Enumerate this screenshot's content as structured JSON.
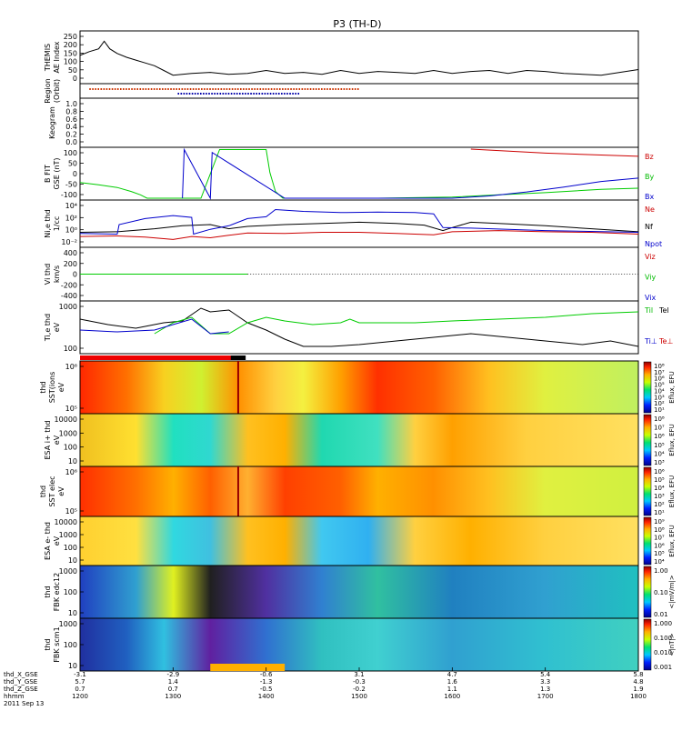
{
  "title": "P3 (TH-D)",
  "date": "2011 Sep 13",
  "chart_data": [
    {
      "type": "line",
      "ylabel": [
        "THEMIS",
        "AE Index"
      ],
      "yticks": [
        "250",
        "200",
        "150",
        "100",
        "50",
        "0"
      ],
      "ylim": [
        0,
        260
      ],
      "series": [
        {
          "color": "#000000",
          "x": [
            1200,
            1210,
            1220,
            1226,
            1232,
            1240,
            1250,
            1260,
            1270,
            1280,
            1290,
            1300,
            1320,
            1340,
            1360,
            1380,
            1400,
            1420,
            1440,
            1460,
            1480,
            1500,
            1520,
            1540,
            1560,
            1580,
            1600,
            1620,
            1640,
            1660,
            1680,
            1700,
            1720,
            1740,
            1760,
            1780,
            1800
          ],
          "y": [
            140,
            160,
            175,
            215,
            175,
            150,
            130,
            115,
            100,
            85,
            60,
            35,
            45,
            50,
            40,
            45,
            60,
            45,
            50,
            40,
            60,
            45,
            55,
            50,
            45,
            60,
            45,
            55,
            60,
            45,
            60,
            55,
            45,
            40,
            35,
            50,
            65
          ]
        }
      ]
    },
    {
      "type": "bar",
      "ylabel": [
        "Region",
        "(Orbit)"
      ],
      "series": [
        {
          "name": "orbit-red",
          "color": "#cc3300",
          "x": [
            1210,
            1500
          ]
        },
        {
          "name": "orbit-blue",
          "color": "#0000aa",
          "x": [
            1305,
            1435
          ]
        }
      ]
    },
    {
      "type": "line",
      "ylabel": [
        "Keogram"
      ],
      "yticks": [
        "1.0",
        "0.8",
        "0.6",
        "0.4",
        "0.2",
        "0.0"
      ],
      "ylim": [
        0,
        1
      ]
    },
    {
      "type": "line",
      "ylabel": [
        "B FIT",
        "GSE (nT)"
      ],
      "yticks": [
        "100",
        "50",
        "0",
        "-50",
        "-100"
      ],
      "ylim": [
        -110,
        110
      ],
      "legend": [
        {
          "label": "Bz",
          "color": "#cc0000"
        },
        {
          "label": "By",
          "color": "#00bb00"
        },
        {
          "label": "Bx",
          "color": "#0000cc"
        }
      ],
      "series": [
        {
          "name": "Bz",
          "color": "#cc0000",
          "x": [
            1620,
            1700,
            1800
          ],
          "y": [
            110,
            92,
            78
          ]
        },
        {
          "name": "By",
          "color": "#00cc00",
          "x": [
            1200,
            1220,
            1240,
            1255,
            1265,
            1272,
            1330,
            1350,
            1400,
            1404,
            1410,
            1418,
            1520,
            1600,
            1650,
            1700,
            1760,
            1800
          ],
          "y": [
            -40,
            -50,
            -62,
            -80,
            -95,
            -110,
            -110,
            108,
            108,
            5,
            -80,
            -110,
            -110,
            -105,
            -95,
            -85,
            -70,
            -65
          ]
        },
        {
          "name": "Bx",
          "color": "#0000cc",
          "x": [
            1310,
            1312,
            1340,
            1342,
            1420,
            1600,
            1640,
            1680,
            1720,
            1760,
            1800
          ],
          "y": [
            -110,
            108,
            -110,
            95,
            -110,
            -110,
            -100,
            -82,
            -60,
            -35,
            -20
          ]
        }
      ]
    },
    {
      "type": "line",
      "ylabel": [
        "Ni,e thd",
        "1/cc"
      ],
      "yticks": [
        "10^4",
        "10^2",
        "10^0",
        "10^-2"
      ],
      "legend": [
        {
          "label": "Ne",
          "color": "#cc0000"
        },
        {
          "label": "Nf",
          "color": "#000000"
        },
        {
          "label": "Npot",
          "color": "#0000cc"
        }
      ],
      "series": [
        {
          "name": "Ne",
          "color": "#cc0000",
          "x": [
            1200,
            1240,
            1270,
            1300,
            1320,
            1340,
            1360,
            1380,
            1420,
            1460,
            1500,
            1540,
            1580,
            1600,
            1650,
            1700,
            1750,
            1800
          ],
          "y": [
            -1.0,
            -0.9,
            -1.1,
            -1.5,
            -1.0,
            -1.2,
            -0.8,
            -0.4,
            -0.5,
            -0.3,
            -0.3,
            -0.5,
            -0.7,
            -0.2,
            0.0,
            -0.2,
            -0.3,
            -0.6
          ]
        },
        {
          "name": "Nf",
          "color": "#000000",
          "x": [
            1200,
            1240,
            1280,
            1310,
            1340,
            1360,
            1380,
            1420,
            1460,
            1500,
            1540,
            1570,
            1590,
            1600,
            1620,
            1660,
            1700,
            1750,
            1800
          ],
          "y": [
            -0.3,
            -0.2,
            0.3,
            0.8,
            1.0,
            0.3,
            0.7,
            1.0,
            1.2,
            1.4,
            1.2,
            0.9,
            0.0,
            0.5,
            1.4,
            1.1,
            0.8,
            0.3,
            -0.2
          ]
        },
        {
          "name": "Npot",
          "color": "#0000cc",
          "x": [
            1200,
            1240,
            1242,
            1270,
            1300,
            1320,
            1322,
            1340,
            1360,
            1380,
            1400,
            1410,
            1440,
            1480,
            1520,
            1560,
            1580,
            1590,
            1620,
            1700,
            1800
          ],
          "y": [
            -0.5,
            -0.6,
            1.0,
            2.0,
            2.5,
            2.2,
            -0.6,
            0.2,
            0.8,
            2.0,
            2.3,
            3.5,
            3.2,
            3.0,
            3.1,
            3.0,
            2.8,
            0.5,
            0.4,
            0.0,
            -0.3
          ]
        }
      ]
    },
    {
      "type": "line",
      "ylabel": [
        "Vi thd",
        "km/s"
      ],
      "yticks": [
        "400",
        "200",
        "0",
        "-200",
        "-400"
      ],
      "ylim": [
        -500,
        500
      ],
      "legend": [
        {
          "label": "Viz",
          "color": "#cc0000"
        },
        {
          "label": "Viy",
          "color": "#00bb00"
        },
        {
          "label": "Vix",
          "color": "#0000cc"
        }
      ],
      "series": [
        {
          "name": "Viz",
          "color": "#cc0000",
          "x": [
            1200,
            1380
          ],
          "y": [
            0,
            0
          ]
        },
        {
          "name": "Viy",
          "color": "#00cc00",
          "x": [
            1200,
            1380
          ],
          "y": [
            0,
            0
          ]
        }
      ]
    },
    {
      "type": "line",
      "ylabel": [
        "Ti,e thd",
        "eV"
      ],
      "yticks": [
        "1000",
        "100"
      ],
      "legend": [
        {
          "label": "Til",
          "color": "#00bb00"
        },
        {
          "label": "Tel",
          "color": "#000000"
        },
        {
          "label": "Ti⊥",
          "color": "#0000cc"
        },
        {
          "label": "Te⊥",
          "color": "#cc0000"
        }
      ],
      "series": [
        {
          "name": "Te",
          "color": "#000000",
          "x": [
            1200,
            1230,
            1260,
            1290,
            1310,
            1330,
            1340,
            1360,
            1380,
            1400,
            1420,
            1440,
            1470,
            1500,
            1540,
            1580,
            1620,
            1660,
            1700,
            1740,
            1770,
            1800
          ],
          "y": [
            2.7,
            2.55,
            2.45,
            2.6,
            2.65,
            3.0,
            2.9,
            2.95,
            2.6,
            2.4,
            2.15,
            1.95,
            1.95,
            2.0,
            2.1,
            2.2,
            2.3,
            2.2,
            2.1,
            2.0,
            2.1,
            1.95
          ]
        },
        {
          "name": "Ti",
          "color": "#00cc00",
          "x": [
            1280,
            1300,
            1320,
            1340,
            1360,
            1380,
            1400,
            1420,
            1450,
            1480,
            1490,
            1500,
            1520,
            1560,
            1600,
            1650,
            1700,
            1750,
            1800
          ],
          "y": [
            2.3,
            2.6,
            2.75,
            2.3,
            2.3,
            2.6,
            2.75,
            2.65,
            2.55,
            2.6,
            2.7,
            2.6,
            2.6,
            2.6,
            2.65,
            2.7,
            2.75,
            2.85,
            2.9
          ]
        },
        {
          "name": "Ti⊥",
          "color": "#0000cc",
          "x": [
            1200,
            1240,
            1280,
            1300,
            1320,
            1340,
            1360
          ],
          "y": [
            2.4,
            2.35,
            2.4,
            2.55,
            2.7,
            2.3,
            2.35
          ]
        }
      ]
    },
    {
      "type": "heatmap",
      "ylabel": [
        "thd",
        "SST(ions",
        "eV"
      ],
      "yticks": [
        "10^6",
        "10^5"
      ],
      "cbar_ticks": [
        "10^8",
        "10^7",
        "10^6",
        "10^5",
        "10^4",
        "10^3",
        "10^2",
        "10^1"
      ],
      "cbar_label": "Eflux, EFU"
    },
    {
      "type": "heatmap",
      "ylabel": [
        "ESA i+ thd",
        "eV"
      ],
      "yticks": [
        "10000",
        "1000",
        "100",
        "10"
      ],
      "cbar_ticks": [
        "10^8",
        "10^7",
        "10^6",
        "10^5",
        "10^4",
        "10^3"
      ],
      "cbar_label": "Eflux, EFU"
    },
    {
      "type": "heatmap",
      "ylabel": [
        "thd",
        "SST elec",
        "eV"
      ],
      "yticks": [
        "10^6",
        "10^5"
      ],
      "cbar_ticks": [
        "10^6",
        "10^5",
        "10^4",
        "10^3",
        "10^2",
        "10^1"
      ],
      "cbar_label": "Eflux, EFU"
    },
    {
      "type": "heatmap",
      "ylabel": [
        "ESA e- thd",
        "eV"
      ],
      "yticks": [
        "10000",
        "1000",
        "100",
        "10"
      ],
      "cbar_ticks": [
        "10^9",
        "10^8",
        "10^7",
        "10^6",
        "10^5",
        "10^4"
      ],
      "cbar_label": "Eflux, EFU"
    },
    {
      "type": "heatmap",
      "ylabel": [
        "thd",
        "FBK edc12"
      ],
      "yticks": [
        "1000",
        "100",
        "10"
      ],
      "cbar_ticks": [
        "1.00",
        "0.10",
        "0.01"
      ],
      "cbar_label": "<|mV/m|>"
    },
    {
      "type": "heatmap",
      "ylabel": [
        "thd",
        "FBK scm1"
      ],
      "yticks": [
        "1000",
        "100",
        "10"
      ],
      "cbar_ticks": [
        "1.000",
        "0.100",
        "0.010",
        "0.001"
      ],
      "cbar_label": "<|nT|>"
    }
  ],
  "xaxis": {
    "row_labels": [
      "thd_X_GSE",
      "thd_Y_GSE",
      "thd_Z_GSE",
      "hhmm",
      "2011 Sep 13"
    ],
    "columns": [
      {
        "x": 1200,
        "vals": [
          "-3.1",
          "5.7",
          "0.7",
          "1200"
        ]
      },
      {
        "x": 1300,
        "vals": [
          "-2.9",
          "1.4",
          "0.7",
          "1300"
        ]
      },
      {
        "x": 1400,
        "vals": [
          "-0.6",
          "-1.3",
          "-0.5",
          "1400"
        ]
      },
      {
        "x": 1500,
        "vals": [
          "3.1",
          "-0.3",
          "-0.2",
          "1500"
        ]
      },
      {
        "x": 1600,
        "vals": [
          "4.7",
          "1.6",
          "1.1",
          "1600"
        ]
      },
      {
        "x": 1700,
        "vals": [
          "5.4",
          "3.3",
          "1.3",
          "1700"
        ]
      },
      {
        "x": 1800,
        "vals": [
          "5.8",
          "4.8",
          "1.9",
          "1800"
        ]
      }
    ]
  }
}
